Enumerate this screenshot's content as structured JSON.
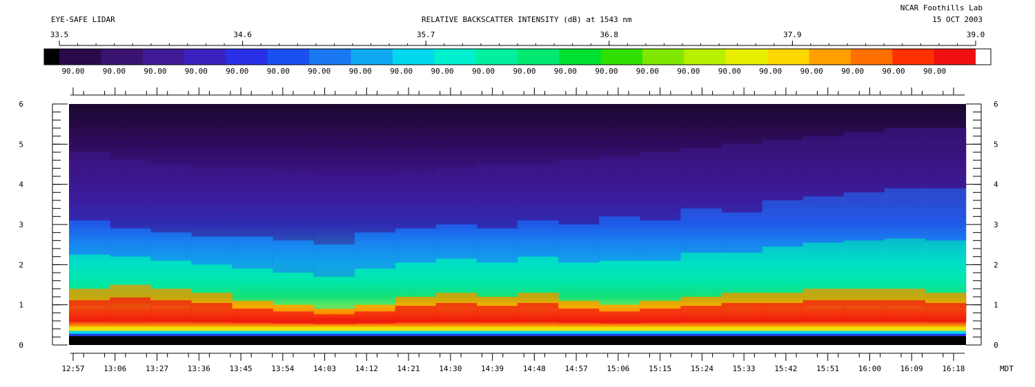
{
  "header": {
    "instrument": "EYE-SAFE LIDAR",
    "title": "RELATIVE BACKSCATTER INTENSITY (dB) at 1543 nm",
    "lab": "NCAR Foothills Lab",
    "date": "15 OCT 2003"
  },
  "chart_data": {
    "type": "heatmap",
    "title": "RELATIVE BACKSCATTER INTENSITY (dB) at 1543 nm",
    "xlabel": "",
    "ylabel": "",
    "x_unit_label": "MDT",
    "colorbar": {
      "ticks": [
        "33.5",
        "34.6",
        "35.7",
        "36.8",
        "37.9",
        "39.0"
      ],
      "range": [
        33.5,
        39.0
      ],
      "under_color": "#000000",
      "over_color": "#ffffff",
      "sub_labels": [
        "90.00",
        "90.00",
        "90.00",
        "90.00",
        "90.00",
        "90.00",
        "90.00",
        "90.00",
        "90.00",
        "90.00",
        "90.00",
        "90.00",
        "90.00",
        "90.00",
        "90.00",
        "90.00",
        "90.00",
        "90.00",
        "90.00",
        "90.00",
        "90.00",
        "90.00"
      ],
      "colors": [
        "#2a0a4a",
        "#3a1270",
        "#3f1a96",
        "#3a22c0",
        "#2a30e8",
        "#1a50f0",
        "#1a78f0",
        "#10a8f0",
        "#00d8f0",
        "#00f0d0",
        "#00f0a0",
        "#00e870",
        "#00e030",
        "#30e000",
        "#80e800",
        "#b8f000",
        "#e8f000",
        "#ffd800",
        "#ffa000",
        "#ff7000",
        "#ff3000",
        "#f01010"
      ]
    },
    "x": {
      "tick_labels": [
        "12:57",
        "13:06",
        "13:27",
        "13:36",
        "13:45",
        "13:54",
        "14:03",
        "14:12",
        "14:21",
        "14:30",
        "14:39",
        "14:48",
        "14:57",
        "15:06",
        "15:15",
        "15:24",
        "15:33",
        "15:42",
        "15:51",
        "16:00",
        "16:09",
        "16:18"
      ]
    },
    "y": {
      "tick_labels": [
        "0",
        "1",
        "2",
        "3",
        "4",
        "5",
        "6"
      ],
      "range": [
        0,
        6
      ]
    },
    "profile": {
      "description_free": true,
      "mixed_layer_top_km": [
        1.4,
        1.5,
        1.4,
        1.3,
        1.1,
        1.0,
        0.9,
        1.0,
        1.2,
        1.3,
        1.2,
        1.3,
        1.1,
        1.0,
        1.1,
        1.2,
        1.3,
        1.3,
        1.4,
        1.4,
        1.4,
        1.3
      ],
      "aerosol_top_km": [
        3.1,
        2.9,
        2.8,
        2.7,
        2.7,
        2.6,
        2.5,
        2.8,
        2.9,
        3.0,
        2.9,
        3.1,
        3.0,
        3.2,
        3.1,
        3.4,
        3.3,
        3.6,
        3.7,
        3.8,
        3.9,
        3.9
      ],
      "diffuse_top_km": [
        4.8,
        4.6,
        4.5,
        4.4,
        4.4,
        4.3,
        4.2,
        4.2,
        4.3,
        4.4,
        4.5,
        4.5,
        4.6,
        4.7,
        4.8,
        4.9,
        5.0,
        5.1,
        5.2,
        5.3,
        5.4,
        5.4
      ]
    }
  }
}
